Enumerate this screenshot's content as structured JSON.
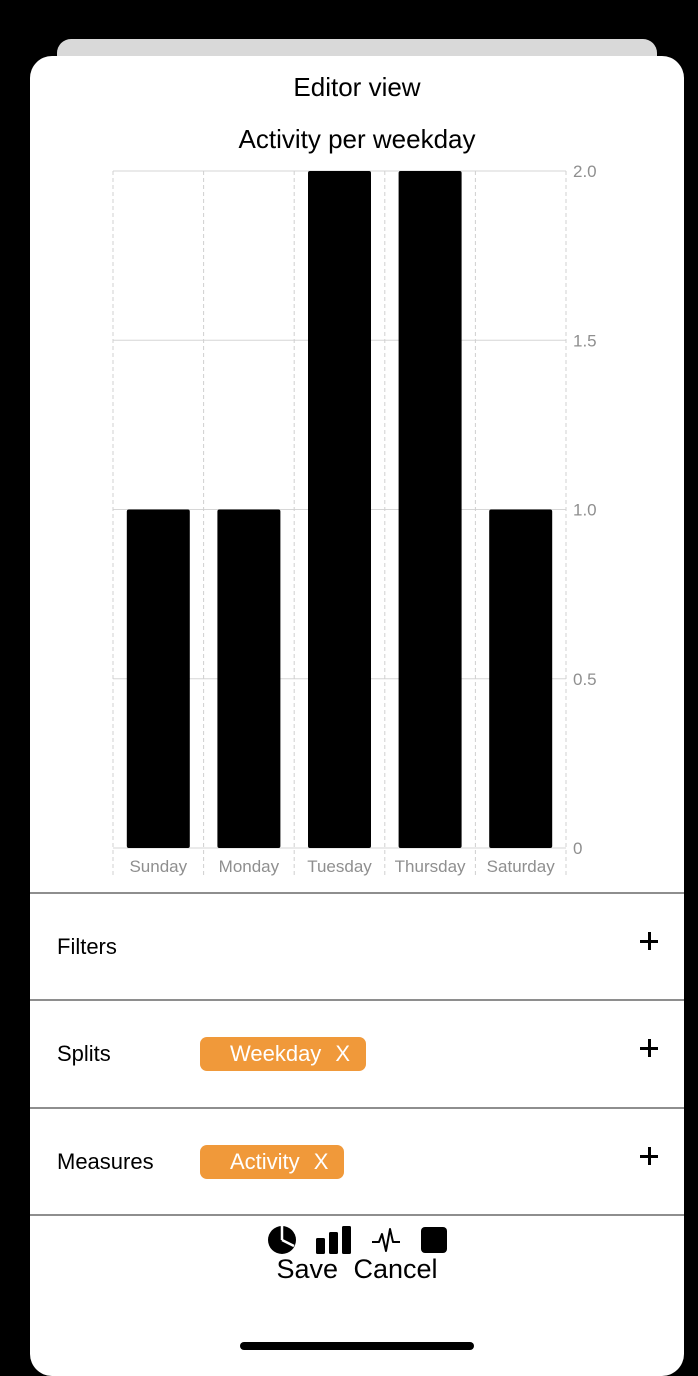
{
  "sheet": {
    "title": "Editor view"
  },
  "chart_data": {
    "type": "bar",
    "title": "Activity per weekday",
    "categories": [
      "Sunday",
      "Monday",
      "Tuesday",
      "Thursday",
      "Saturday"
    ],
    "values": [
      1,
      1,
      2,
      2,
      1
    ],
    "ylim": [
      0,
      2
    ],
    "yticks": [
      "0",
      "0.5",
      "1.0",
      "1.5",
      "2.0"
    ],
    "grid": true,
    "bar_color": "#000000",
    "y_axis_side": "right"
  },
  "panels": {
    "filters": {
      "label": "Filters"
    },
    "splits": {
      "label": "Splits",
      "chip": "Weekday",
      "chip_remove": "X"
    },
    "measures": {
      "label": "Measures",
      "chip": "Activity",
      "chip_remove": "X"
    }
  },
  "toolbar": {
    "icons": [
      "pie-chart-icon",
      "bar-chart-icon",
      "line-chart-icon",
      "square-icon"
    ]
  },
  "actions": {
    "save": "Save",
    "cancel": "Cancel"
  },
  "colors": {
    "chip": "#f0993a",
    "background": "#000000"
  }
}
